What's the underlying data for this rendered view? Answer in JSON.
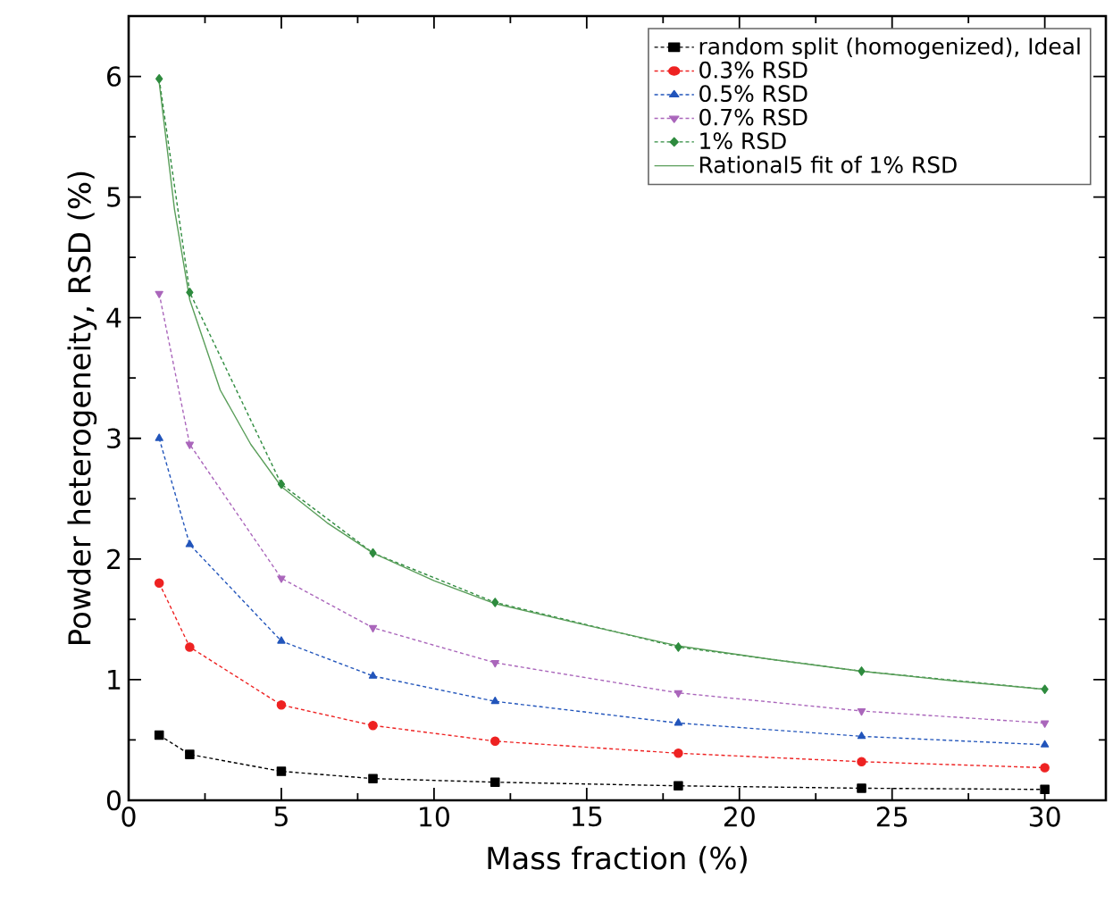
{
  "chart_data": {
    "type": "line",
    "xlabel": "Mass fraction (%)",
    "ylabel": "Powder heterogeneity, RSD (%)",
    "xlim": [
      0,
      32
    ],
    "ylim": [
      0,
      6.5
    ],
    "xticks": [
      0,
      5,
      10,
      15,
      20,
      25,
      30
    ],
    "yticks": [
      0,
      1,
      2,
      3,
      4,
      5,
      6
    ],
    "grid": false,
    "legend": "top right",
    "x": [
      1,
      2,
      5,
      8,
      12,
      18,
      24,
      30
    ],
    "series": [
      {
        "name": "random split (homogenized), Ideal",
        "color": "#000000",
        "marker": "square",
        "line_style": "dashed",
        "values": [
          0.54,
          0.38,
          0.24,
          0.18,
          0.15,
          0.12,
          0.1,
          0.09
        ]
      },
      {
        "name": "0.3% RSD",
        "color": "#ee2222",
        "marker": "circle",
        "line_style": "dashed",
        "values": [
          1.8,
          1.27,
          0.79,
          0.62,
          0.49,
          0.39,
          0.32,
          0.27
        ]
      },
      {
        "name": "0.5% RSD",
        "color": "#2255bb",
        "marker": "triangle",
        "line_style": "dashed",
        "values": [
          3.0,
          2.12,
          1.32,
          1.03,
          0.82,
          0.64,
          0.53,
          0.46
        ]
      },
      {
        "name": "0.7% RSD",
        "color": "#aa66bb",
        "marker": "triangle-down",
        "line_style": "dashed",
        "values": [
          4.2,
          2.95,
          1.84,
          1.43,
          1.14,
          0.89,
          0.74,
          0.64
        ]
      },
      {
        "name": "1% RSD",
        "color": "#2e8b3e",
        "marker": "diamond",
        "line_style": "dashed",
        "values": [
          5.98,
          4.21,
          2.62,
          2.05,
          1.64,
          1.27,
          1.07,
          0.92
        ]
      },
      {
        "name": "Rational5 fit of 1% RSD",
        "color": "#5a9e5a",
        "marker": "none",
        "line_style": "solid",
        "x": [
          1,
          1.5,
          2,
          3,
          4,
          5,
          6.5,
          8,
          10,
          12,
          15,
          18,
          21,
          24,
          27,
          30
        ],
        "values": [
          5.95,
          4.9,
          4.15,
          3.4,
          2.95,
          2.6,
          2.3,
          2.05,
          1.82,
          1.63,
          1.45,
          1.28,
          1.17,
          1.07,
          0.99,
          0.92
        ]
      }
    ]
  }
}
